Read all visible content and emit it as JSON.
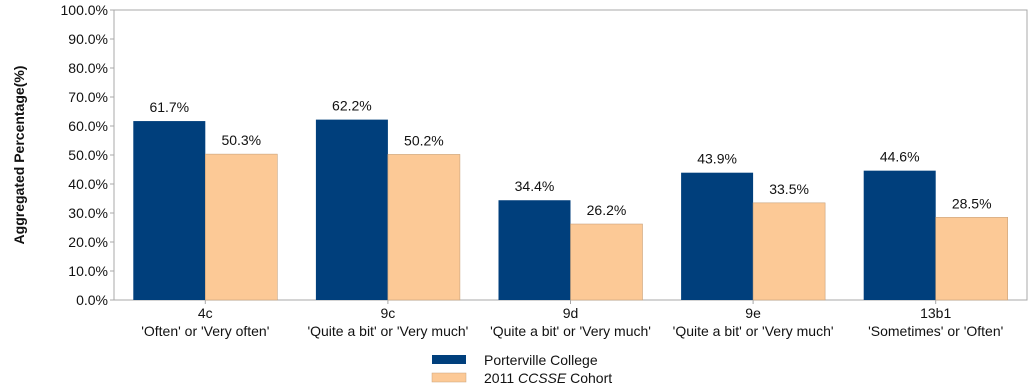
{
  "chart_data": {
    "type": "bar",
    "ylabel": "Aggregated Percentage(%)",
    "xlabel": "",
    "ylim": [
      0,
      100
    ],
    "yticks": [
      "0.0%",
      "10.0%",
      "20.0%",
      "30.0%",
      "40.0%",
      "50.0%",
      "60.0%",
      "70.0%",
      "80.0%",
      "90.0%",
      "100.0%"
    ],
    "categories": [
      {
        "code": "4c",
        "desc": "'Often' or 'Very often'"
      },
      {
        "code": "9c",
        "desc": "'Quite a bit' or 'Very much'"
      },
      {
        "code": "9d",
        "desc": "'Quite a bit' or 'Very much'"
      },
      {
        "code": "9e",
        "desc": "'Quite a bit' or 'Very much'"
      },
      {
        "code": "13b1",
        "desc": "'Sometimes' or 'Often'"
      }
    ],
    "series": [
      {
        "name": "Porterville College",
        "color": "#003f7c",
        "values": [
          61.7,
          62.2,
          34.4,
          43.9,
          44.6
        ],
        "labels": [
          "61.7%",
          "62.2%",
          "34.4%",
          "43.9%",
          "44.6%"
        ]
      },
      {
        "name": "2011 CCSSE Cohort",
        "name_prefix": "2011 ",
        "name_italic": "CCSSE",
        "name_suffix": " Cohort",
        "color": "#fcc996",
        "values": [
          50.3,
          50.2,
          26.2,
          33.5,
          28.5
        ],
        "labels": [
          "50.3%",
          "50.2%",
          "26.2%",
          "33.5%",
          "28.5%"
        ]
      }
    ],
    "grid": false,
    "legend_position": "bottom-center"
  }
}
